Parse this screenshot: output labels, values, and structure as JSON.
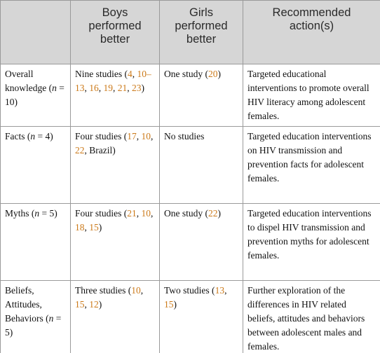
{
  "table": {
    "header": [
      "Boys performed better",
      "Girls performed better",
      "Recommended action(s)"
    ],
    "rows": [
      [
        [
          "Overall knowledge (",
          {
            "italic": "n"
          },
          " = 10)"
        ],
        [
          "Nine studies (",
          {
            "ref": "4"
          },
          ", ",
          {
            "ref": "10–13"
          },
          ", ",
          {
            "ref": "16"
          },
          ", ",
          {
            "ref": "19"
          },
          ", ",
          {
            "ref": "21"
          },
          ", ",
          {
            "ref": "23"
          },
          ")"
        ],
        [
          "One study (",
          {
            "ref": "20"
          },
          ")"
        ],
        [
          "Targeted educational interventions to promote overall HIV literacy among adolescent females."
        ]
      ],
      [
        [
          "Facts (",
          {
            "italic": "n"
          },
          " = 4)"
        ],
        [
          "Four studies (",
          {
            "ref": "17"
          },
          ", ",
          {
            "ref": "10"
          },
          ", ",
          {
            "ref": "22"
          },
          ", Brazil)"
        ],
        [
          "No studies"
        ],
        [
          "Targeted education interventions on HIV transmission and prevention facts for adolescent females."
        ]
      ],
      [
        [
          "Myths (",
          {
            "italic": "n"
          },
          " = 5)"
        ],
        [
          "Four studies (",
          {
            "ref": "21"
          },
          ", ",
          {
            "ref": "10"
          },
          ", ",
          {
            "ref": "18"
          },
          ", ",
          {
            "ref": "15"
          },
          ")"
        ],
        [
          "One study (",
          {
            "ref": "22"
          },
          ")"
        ],
        [
          "Targeted education interventions to dispel HIV transmission and prevention myths for adolescent females."
        ]
      ],
      [
        [
          "Beliefs, Attitudes, Behaviors (",
          {
            "italic": "n"
          },
          " = 5)"
        ],
        [
          "Three studies (",
          {
            "ref": "10"
          },
          ", ",
          {
            "ref": "15"
          },
          ", ",
          {
            "ref": "12"
          },
          ")"
        ],
        [
          "Two studies (",
          {
            "ref": "13"
          },
          ", ",
          {
            "ref": "15"
          },
          ")"
        ],
        [
          "Further exploration of the differences in HIV related beliefs, attitudes and behaviors between adolescent males and females."
        ]
      ]
    ]
  }
}
